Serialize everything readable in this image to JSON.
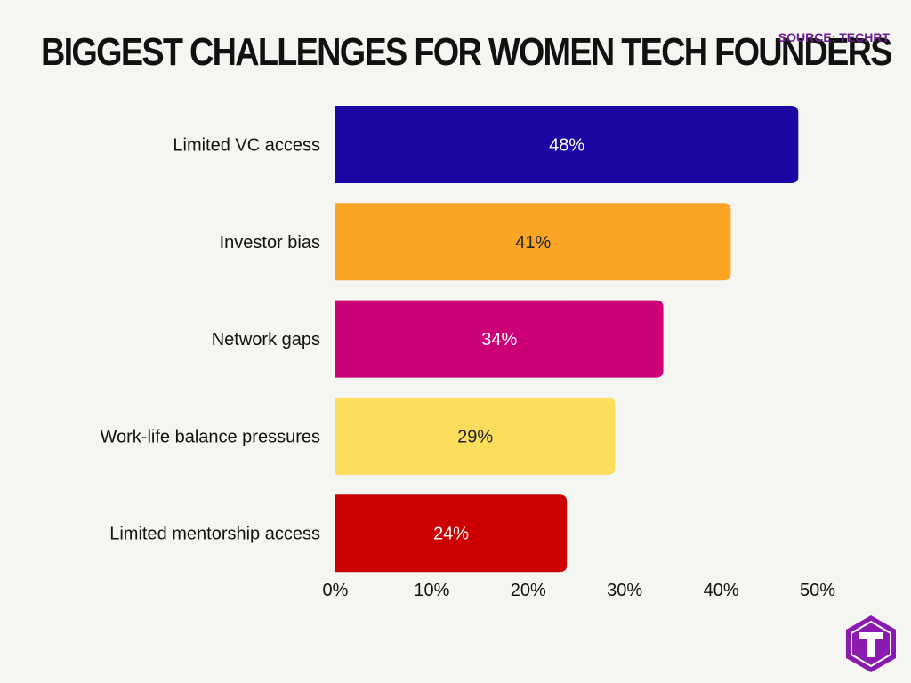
{
  "header": {
    "title": "BIGGEST CHALLENGES FOR WOMEN TECH FOUNDERS",
    "source": "SOURCE: TECHRT"
  },
  "logo": {
    "icon": "techrt-logo-icon",
    "letter": "T",
    "color": "#8a1ab0"
  },
  "chart_data": {
    "type": "bar",
    "orientation": "horizontal",
    "categories": [
      "Limited VC access",
      "Investor bias",
      "Network gaps",
      "Work-life balance pressures",
      "Limited mentorship access"
    ],
    "values": [
      48,
      41,
      34,
      29,
      24
    ],
    "value_labels": [
      "48%",
      "41%",
      "34%",
      "29%",
      "24%"
    ],
    "colors": [
      "#1a06a3",
      "#fca524",
      "#cc0077",
      "#fdde5c",
      "#cc0000"
    ],
    "label_colors": [
      "#ffffff",
      "#222222",
      "#ffffff",
      "#222222",
      "#ffffff"
    ],
    "xlim": [
      0,
      50
    ],
    "xticks": [
      0,
      10,
      20,
      30,
      40,
      50
    ],
    "xtick_labels": [
      "0%",
      "10%",
      "20%",
      "30%",
      "40%",
      "50%"
    ],
    "grid": false,
    "legend": false
  }
}
